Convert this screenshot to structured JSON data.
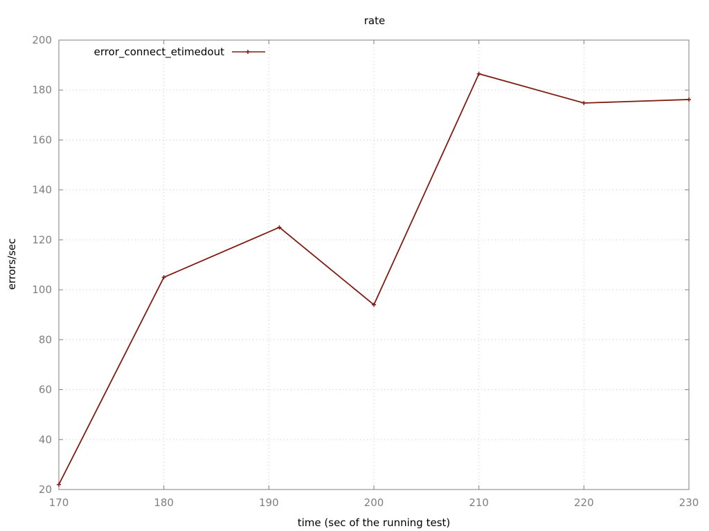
{
  "chart_data": {
    "type": "line",
    "title": "rate",
    "xlabel": "time (sec of the running test)",
    "ylabel": "errors/sec",
    "xlim": [
      170,
      230
    ],
    "ylim": [
      20,
      200
    ],
    "xticks": [
      170,
      180,
      190,
      200,
      210,
      220,
      230
    ],
    "yticks": [
      20,
      40,
      60,
      80,
      100,
      120,
      140,
      160,
      180,
      200
    ],
    "grid": true,
    "legend_position": "top-left",
    "series": [
      {
        "name": "error_connect_etimedout",
        "color": "#7f1a10",
        "marker": "plus",
        "x": [
          170,
          180,
          191,
          200,
          210,
          220,
          230
        ],
        "y": [
          22,
          105,
          125,
          94,
          186.5,
          174.8,
          176.2
        ]
      }
    ]
  }
}
